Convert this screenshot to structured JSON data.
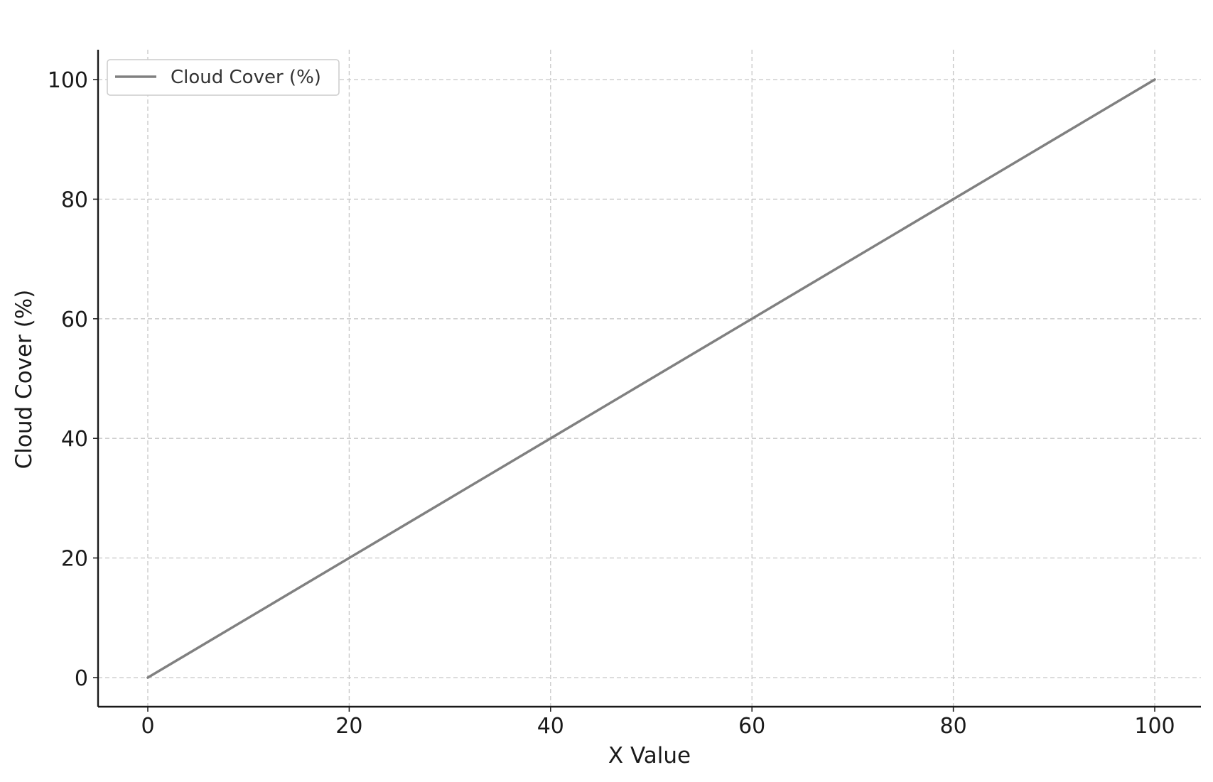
{
  "chart_data": {
    "type": "line",
    "title": "",
    "xlabel": "X Value",
    "ylabel": "Cloud Cover (%)",
    "xlim": [
      -5,
      105
    ],
    "ylim": [
      -5,
      105
    ],
    "xticks": [
      0,
      20,
      40,
      60,
      80,
      100
    ],
    "yticks": [
      0,
      20,
      40,
      60,
      80,
      100
    ],
    "grid": true,
    "legend_position": "top-left",
    "series": [
      {
        "name": "Cloud Cover (%)",
        "color": "#808080",
        "x": [
          0,
          100
        ],
        "y": [
          0,
          100
        ]
      }
    ]
  }
}
